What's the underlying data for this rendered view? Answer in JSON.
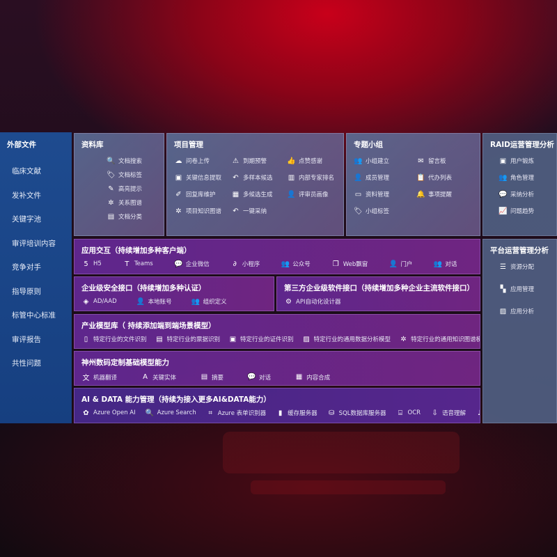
{
  "sidebar": {
    "title": "外部文件",
    "items": [
      "临床文献",
      "发补文件",
      "关键字池",
      "审评培训内容",
      "竞争对手",
      "指导原则",
      "标管中心标准",
      "审评报告",
      "共性问题"
    ]
  },
  "library": {
    "title": "资料库",
    "items": [
      {
        "icon": "document-search-icon",
        "g": "🔍",
        "label": "文档搜索"
      },
      {
        "icon": "tag-icon",
        "g": "🏷",
        "label": "文档标签"
      },
      {
        "icon": "pen-icon",
        "g": "✎",
        "label": "高亮提示"
      },
      {
        "icon": "graph-icon",
        "g": "✲",
        "label": "关系图谱"
      },
      {
        "icon": "document-list-icon",
        "g": "▤",
        "label": "文档分类"
      }
    ]
  },
  "project": {
    "title": "项目管理",
    "items": [
      {
        "icon": "cloud-upload-icon",
        "g": "☁",
        "label": "问卷上传"
      },
      {
        "icon": "alarm-icon",
        "g": "⚠",
        "label": "到期预警"
      },
      {
        "icon": "thumbs-up-icon",
        "g": "👍",
        "label": "点赞感谢"
      },
      {
        "icon": "form-icon",
        "g": "▣",
        "label": "关键信息提取"
      },
      {
        "icon": "reply-icon",
        "g": "↶",
        "label": "多样本候选"
      },
      {
        "icon": "ranking-icon",
        "g": "▥",
        "label": "内部专家排名"
      },
      {
        "icon": "edit-icon",
        "g": "✐",
        "label": "回复库维护"
      },
      {
        "icon": "puzzle-icon",
        "g": "▦",
        "label": "多候选生成"
      },
      {
        "icon": "user-icon",
        "g": "👤",
        "label": "评审员画像"
      },
      {
        "icon": "graph-icon",
        "g": "✲",
        "label": "项目知识图谱"
      },
      {
        "icon": "reply-icon",
        "g": "↶",
        "label": "一键采纳"
      }
    ]
  },
  "group": {
    "title": "专题小组",
    "items": [
      {
        "icon": "users-icon",
        "g": "👥",
        "label": "小组建立"
      },
      {
        "icon": "bbs-icon",
        "g": "✉",
        "label": "留言板"
      },
      {
        "icon": "user-add-icon",
        "g": "👤",
        "label": "成员管理"
      },
      {
        "icon": "clipboard-icon",
        "g": "📋",
        "label": "代办列表"
      },
      {
        "icon": "folder-icon",
        "g": "▭",
        "label": "资料管理"
      },
      {
        "icon": "bell-icon",
        "g": "🔔",
        "label": "事项提醒"
      },
      {
        "icon": "tag-icon",
        "g": "🏷",
        "label": "小组标签"
      }
    ]
  },
  "raid": {
    "title": "RAID运营管理分析",
    "items": [
      {
        "icon": "id-card-icon",
        "g": "▣",
        "label": "用户锻炼"
      },
      {
        "icon": "users-icon",
        "g": "👥",
        "label": "角色管理"
      },
      {
        "icon": "qa-icon",
        "g": "💬",
        "label": "采纳分析"
      },
      {
        "icon": "trend-icon",
        "g": "📈",
        "label": "问题趋势"
      }
    ]
  },
  "platform": {
    "title": "平台运营管理分析",
    "items": [
      {
        "icon": "checklist-icon",
        "g": "☰",
        "label": "资源分配"
      },
      {
        "icon": "apps-icon",
        "g": "▚",
        "label": "应用管理"
      },
      {
        "icon": "analytics-icon",
        "g": "▨",
        "label": "应用分析"
      }
    ]
  },
  "app": {
    "title": "应用交互（持续增加多种客户端）",
    "items": [
      {
        "icon": "html5-icon",
        "g": "5",
        "label": "H5"
      },
      {
        "icon": "teams-icon",
        "g": "T",
        "label": "Teams"
      },
      {
        "icon": "wechat-icon",
        "g": "💬",
        "label": "企业微信"
      },
      {
        "icon": "mini-program-icon",
        "g": "∂",
        "label": "小程序"
      },
      {
        "icon": "users-icon",
        "g": "👥",
        "label": "公众号"
      },
      {
        "icon": "window-icon",
        "g": "❐",
        "label": "Web飘窗"
      },
      {
        "icon": "portal-user-icon",
        "g": "👤",
        "label": "门户"
      },
      {
        "icon": "chat-users-icon",
        "g": "👥",
        "label": "对话"
      }
    ]
  },
  "security": {
    "title": "企业级安全接口（持续增加多种认证）",
    "items": [
      {
        "icon": "ad-icon",
        "g": "◈",
        "label": "AD/AAD"
      },
      {
        "icon": "local-account-icon",
        "g": "👤",
        "label": "本地账号"
      },
      {
        "icon": "organization-icon",
        "g": "👥",
        "label": "组织定义"
      }
    ]
  },
  "thirdparty": {
    "title": "第三方企业级软件接口（持续增加多种企业主流软件接口）",
    "items": [
      {
        "icon": "gear-icon",
        "g": "⚙",
        "label": "API自动化设计器"
      }
    ]
  },
  "industry": {
    "title": "产业模型库（ 持续添加端到端场景模型）",
    "items": [
      {
        "icon": "file-icon",
        "g": "▯",
        "label": "特定行业的文件识别"
      },
      {
        "icon": "receipt-icon",
        "g": "▤",
        "label": "特定行业的票据识别"
      },
      {
        "icon": "id-card-icon",
        "g": "▣",
        "label": "特定行业的证件识别"
      },
      {
        "icon": "chart-icon",
        "g": "▨",
        "label": "特定行业的通用数据分析模型"
      },
      {
        "icon": "graph-icon",
        "g": "✲",
        "label": "特定行业的通用知识图谱模型"
      }
    ]
  },
  "base": {
    "title": "神州数码定制基础模型能力",
    "items": [
      {
        "icon": "translate-icon",
        "g": "文",
        "label": "机器翻译"
      },
      {
        "icon": "entity-icon",
        "g": "A",
        "label": "关键实体"
      },
      {
        "icon": "summary-icon",
        "g": "▤",
        "label": "摘要"
      },
      {
        "icon": "chat-icon",
        "g": "💬",
        "label": "对话"
      },
      {
        "icon": "puzzle-icon",
        "g": "▦",
        "label": "内容合成"
      }
    ]
  },
  "aidata": {
    "title": "AI & DATA 能力管理（持续为接入更多AI&DATA能力）",
    "items": [
      {
        "icon": "openai-icon",
        "g": "✿",
        "label": "Azure Open AI"
      },
      {
        "icon": "search-doc-icon",
        "g": "🔍",
        "label": "Azure Search"
      },
      {
        "icon": "form-recognizer-icon",
        "g": "⌗",
        "label": "Azure 表单识别器"
      },
      {
        "icon": "cache-icon",
        "g": "▮",
        "label": "缓存服务器"
      },
      {
        "icon": "database-icon",
        "g": "⛁",
        "label": "SQL数据库服务器"
      },
      {
        "icon": "ocr-icon",
        "g": "⌸",
        "label": "OCR"
      },
      {
        "icon": "speech-icon",
        "g": "⇩",
        "label": "语音理解"
      },
      {
        "icon": "tts-icon",
        "g": "♫",
        "label": "TTS"
      }
    ]
  }
}
